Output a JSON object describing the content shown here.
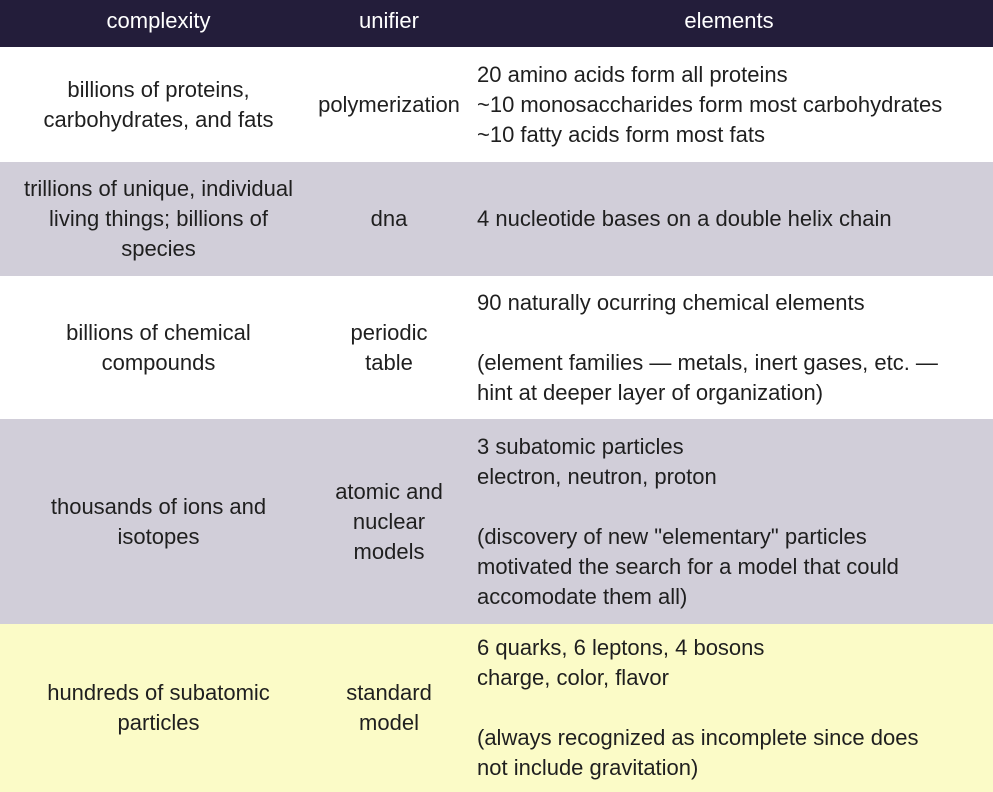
{
  "colors": {
    "header_bg": "#231d3a",
    "header_text": "#ffffff",
    "row_white": "#ffffff",
    "row_lavender": "#d1ced9",
    "row_yellow": "#fbfbc7"
  },
  "header": {
    "complexity": "complexity",
    "unifier": "unifier",
    "elements": "elements"
  },
  "rows": [
    {
      "bg": "#ffffff",
      "complexity": [
        "billions of proteins,",
        "carbohydrates, and fats"
      ],
      "unifier": [
        "polymerization"
      ],
      "elements": [
        "20 amino acids form all proteins",
        "~10 monosaccharides form most carbohydrates",
        "~10 fatty acids form most fats"
      ]
    },
    {
      "bg": "#d1ced9",
      "complexity": [
        "trillions of unique, individual",
        "living things; billions of",
        "species"
      ],
      "unifier": [
        "dna"
      ],
      "elements": [
        "4 nucleotide bases on a double helix chain"
      ]
    },
    {
      "bg": "#ffffff",
      "complexity": [
        "billions of chemical",
        "compounds"
      ],
      "unifier": [
        "periodic",
        "table"
      ],
      "elements": [
        "90 naturally ocurring chemical elements",
        "",
        "(element families — metals, inert gases, etc. —",
        "hint at deeper layer of organization)"
      ]
    },
    {
      "bg": "#d1ced9",
      "complexity": [
        "thousands of ions and",
        "isotopes"
      ],
      "unifier": [
        "atomic and",
        "nuclear",
        "models"
      ],
      "elements": [
        "3 subatomic particles",
        "electron, neutron, proton",
        "",
        "(discovery of new \"elementary\" particles",
        "motivated the search for a model that could",
        "accomodate them all)"
      ]
    },
    {
      "bg": "#fbfbc7",
      "complexity": [
        "hundreds of subatomic",
        "particles"
      ],
      "unifier": [
        "standard",
        "model"
      ],
      "elements": [
        "6 quarks, 6 leptons, 4 bosons",
        "charge, color, flavor",
        "",
        "(always recognized as incomplete since does",
        "not include gravitation)"
      ]
    }
  ]
}
